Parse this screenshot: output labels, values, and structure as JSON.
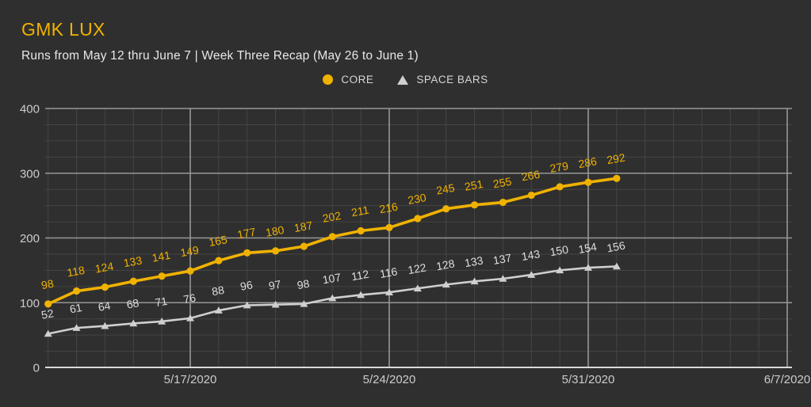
{
  "header": {
    "title": "GMK LUX",
    "subtitle": "Runs from May 12 thru June 7 | Week Three Recap (May 26 to June 1)"
  },
  "legend": {
    "items": [
      {
        "label": "CORE",
        "marker": "circle",
        "color": "#f0b200"
      },
      {
        "label": "SPACE BARS",
        "marker": "triangle",
        "color": "#cfcfcf"
      }
    ]
  },
  "chart_data": {
    "type": "line",
    "title": "GMK LUX",
    "subtitle": "Runs from May 12 thru June 7 | Week Three Recap (May 26 to June 1)",
    "x_axis": {
      "unit": "days",
      "range_days": 26,
      "ticks": [
        {
          "day": 5,
          "label": "5/17/2020"
        },
        {
          "day": 12,
          "label": "5/24/2020"
        },
        {
          "day": 19,
          "label": "5/31/2020"
        },
        {
          "day": 26,
          "label": "6/7/2020"
        }
      ]
    },
    "y_axis": {
      "min": 0,
      "max": 400,
      "major_step": 100,
      "minor_step": 25,
      "tick_labels": [
        "0",
        "100",
        "200",
        "300",
        "400"
      ]
    },
    "grid": {
      "minor_horizontal": true,
      "minor_vertical_every_day": true
    },
    "legend_position": "top-center",
    "series": [
      {
        "name": "CORE",
        "marker": "circle",
        "color": "#f0b200",
        "label_color": "#f0b200",
        "start_day": 0,
        "values": [
          98,
          118,
          124,
          133,
          141,
          149,
          165,
          177,
          180,
          187,
          202,
          211,
          216,
          230,
          245,
          251,
          255,
          266,
          279,
          286,
          292
        ]
      },
      {
        "name": "SPACE BARS",
        "marker": "triangle",
        "color": "#cfcfcf",
        "label_color": "#dedede",
        "start_day": 0,
        "values": [
          52,
          61,
          64,
          68,
          71,
          76,
          88,
          96,
          97,
          98,
          107,
          112,
          116,
          122,
          128,
          133,
          137,
          143,
          150,
          154,
          156
        ]
      }
    ]
  },
  "colors": {
    "background": "#2f2f2f",
    "accent_gold": "#f0b200",
    "series_gray": "#cfcfcf",
    "grid_minor": "#454545",
    "grid_major": "#979797",
    "axis_line": "#d9d9d9",
    "tick_text": "#cccccc"
  }
}
